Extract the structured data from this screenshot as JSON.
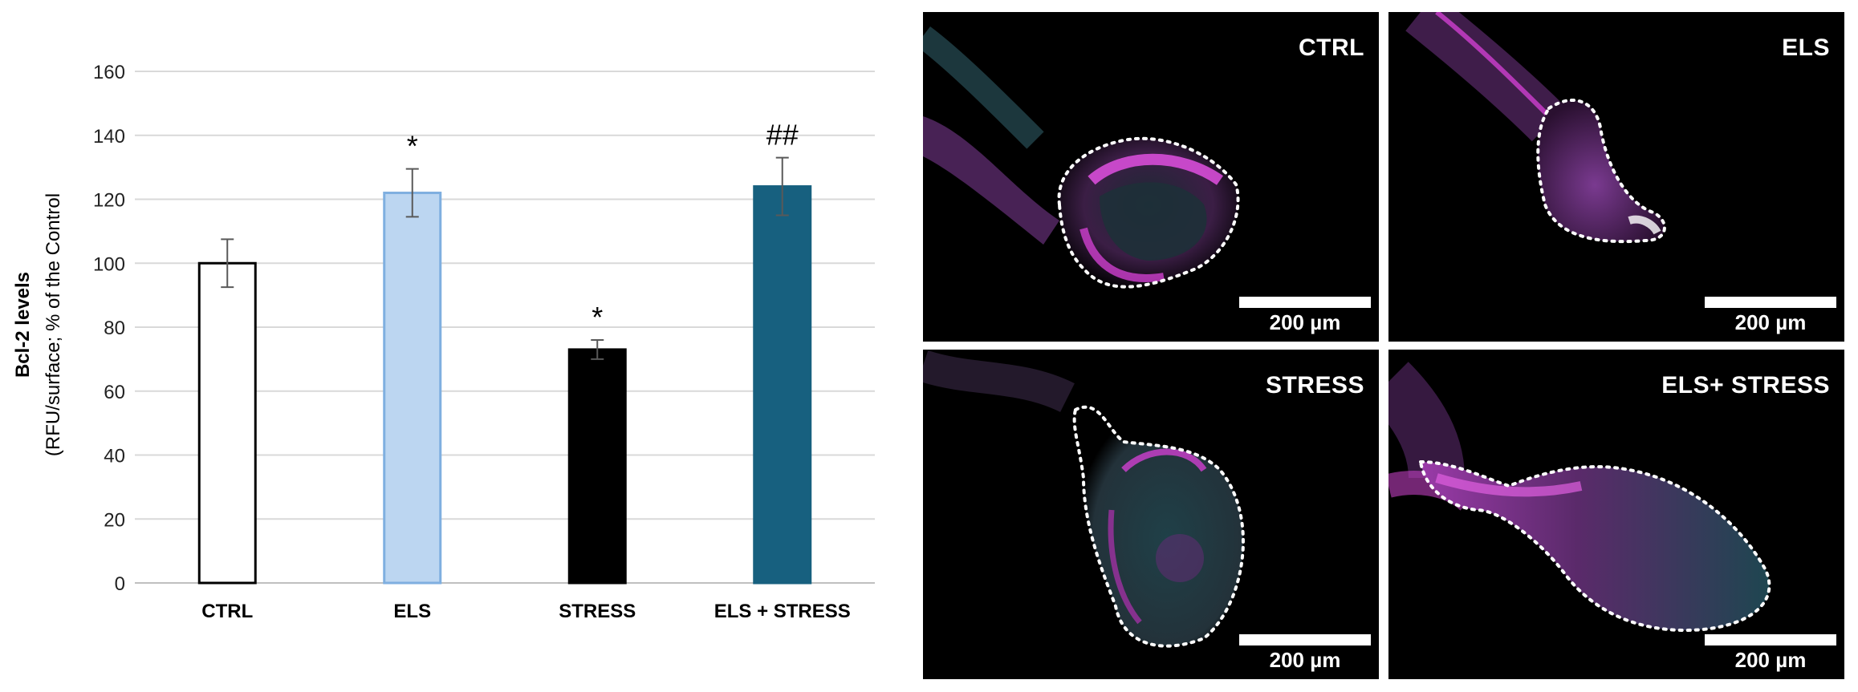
{
  "chart_data": {
    "type": "bar",
    "categories": [
      "CTRL",
      "ELS",
      "STRESS",
      "ELS + STRESS"
    ],
    "values": [
      100,
      122,
      73,
      124
    ],
    "errors": [
      7.5,
      7.5,
      3,
      9
    ],
    "significance": [
      "",
      "*",
      "*",
      "##"
    ],
    "ylabel_line1": "Bcl-2 levels",
    "ylabel_line2": "(RFU/surface; % of the Control",
    "ylim": [
      0,
      160
    ],
    "yticks": [
      0,
      20,
      40,
      60,
      80,
      100,
      120,
      140,
      160
    ],
    "grid": true,
    "bar_colors": [
      "#ffffff",
      "#bcd6f1",
      "#000000",
      "#17607f"
    ],
    "bar_edge_colors": [
      "#000000",
      "#7fafe0",
      "#000000",
      "#17607f"
    ]
  },
  "micrographs": [
    {
      "label": "CTRL",
      "scale": "200 µm"
    },
    {
      "label": "ELS",
      "scale": "200 µm"
    },
    {
      "label": "STRESS",
      "scale": "200 µm"
    },
    {
      "label": "ELS+ STRESS",
      "scale": "200 µm"
    }
  ],
  "colors": {
    "magenta": "#d63fd6",
    "cyan": "#5fc7d0",
    "background": "#000000"
  }
}
